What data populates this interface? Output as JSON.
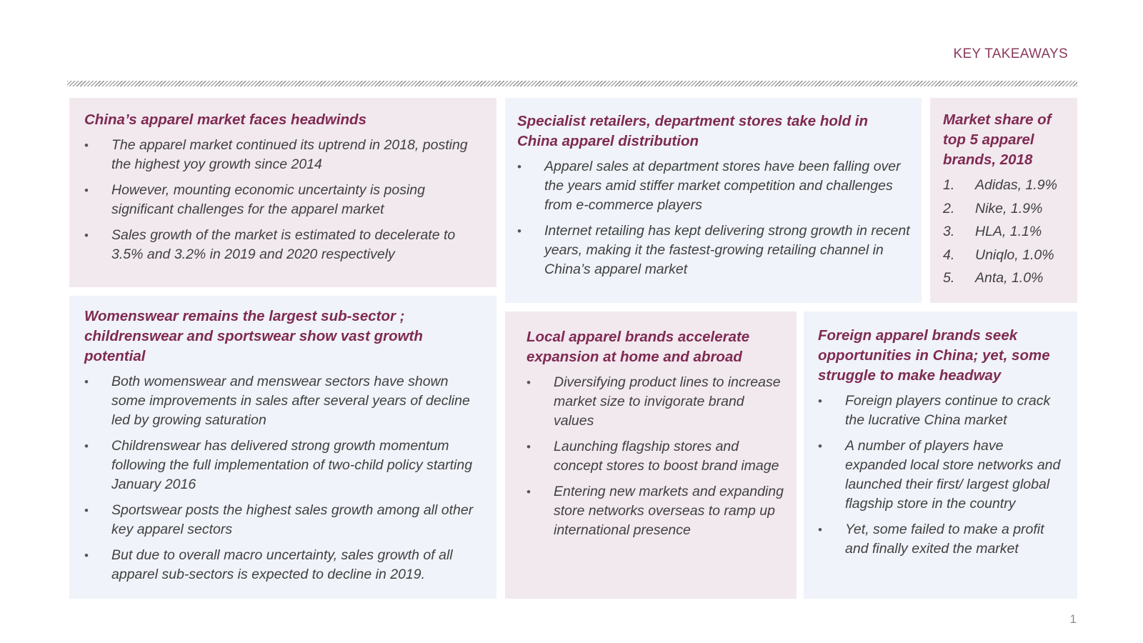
{
  "header": {
    "title": "KEY TAKEAWAYS"
  },
  "sections": [
    {
      "title": "China’s apparel market faces headwinds",
      "bullets": [
        "The apparel market continued its uptrend in 2018, posting the highest yoy growth since 2014",
        "However, mounting economic uncertainty is posing significant challenges for the apparel market",
        "Sales growth of the market is estimated to decelerate to 3.5% and 3.2% in 2019 and 2020 respectively"
      ]
    },
    {
      "title": "Specialist retailers, department stores take hold in China apparel distribution",
      "bullets": [
        "Apparel sales at department stores have been falling over the years amid stiffer market competition and challenges from e-commerce players",
        "Internet retailing has kept delivering strong growth in recent years, making it the fastest-growing retailing channel in China’s apparel market"
      ]
    },
    {
      "title": "Market share of top 5 apparel brands, 2018",
      "items": [
        {
          "num": "1.",
          "text": "Adidas, 1.9%"
        },
        {
          "num": "2.",
          "text": "Nike, 1.9%"
        },
        {
          "num": "3.",
          "text": "HLA, 1.1%"
        },
        {
          "num": "4.",
          "text": "Uniqlo, 1.0%"
        },
        {
          "num": "5.",
          "text": "Anta, 1.0%"
        }
      ]
    },
    {
      "title": "Womenswear remains the largest sub-sector ; childrenswear and sportswear show vast growth potential",
      "bullets": [
        "Both womenswear and menswear sectors have shown some improvements in sales after several years of decline led by growing saturation",
        "Childrenswear has delivered strong growth momentum following the full implementation of two-child policy starting January 2016",
        "Sportswear posts the highest sales growth among all other key apparel sectors",
        "But due to overall macro uncertainty, sales growth of all apparel sub-sectors is expected to decline in 2019."
      ]
    },
    {
      "title": "Local apparel brands accelerate expansion at home and abroad",
      "bullets": [
        "Diversifying product lines to increase market size to invigorate brand values",
        "Launching flagship stores and concept stores to boost brand image",
        "Entering new markets and expanding store networks overseas to ramp up international presence"
      ]
    },
    {
      "title": "Foreign apparel brands seek opportunities in China; yet, some struggle to make headway",
      "bullets": [
        "Foreign players continue to crack the lucrative China market",
        "A number of players have expanded local store networks and launched their first/ largest global flagship store in the country",
        "Yet, some failed to make a profit and finally exited the market"
      ]
    }
  ],
  "bullet_glyph": "•",
  "page_number": "1",
  "colors": {
    "heading": "#7f2a52",
    "pink_panel": "#f2e9ef",
    "blue_panel": "#f0f3f9",
    "body_text": "#404040"
  }
}
